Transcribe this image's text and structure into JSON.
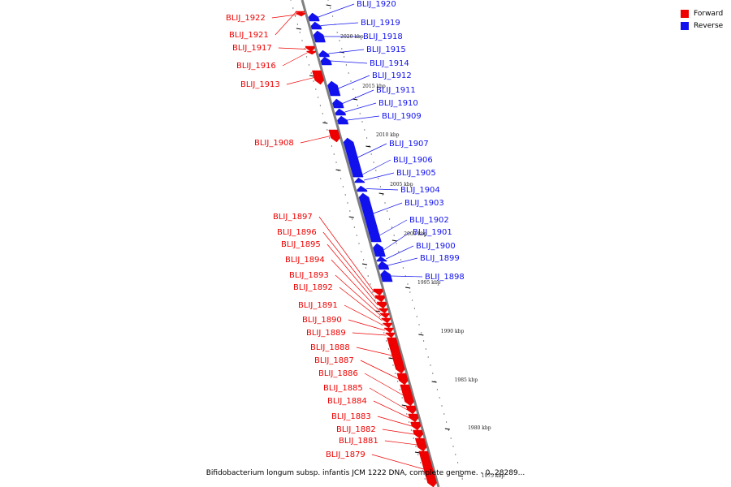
{
  "caption": "Bifidobacterium longum subsp. infantis JCM 1222 DNA, complete genome. - 0..28289...",
  "legend": [
    {
      "label": "Forward",
      "color": "#ee0000"
    },
    {
      "label": "Reverse",
      "color": "#1111ee"
    }
  ],
  "colors": {
    "forward": "#ee0000",
    "reverse": "#1111ee",
    "backbone": "#808080"
  },
  "scale_labels": [
    "2020 kbp",
    "2015 kbp",
    "2010 kbp",
    "2005 kbp",
    "2000 kbp",
    "1995 kbp",
    "1990 kbp",
    "1985 kbp",
    "1980 kbp",
    "1975 kbp"
  ],
  "genes": [
    {
      "id": "BLIJ_1922",
      "strand": "forward"
    },
    {
      "id": "BLIJ_1921",
      "strand": "forward"
    },
    {
      "id": "BLIJ_1920",
      "strand": "reverse"
    },
    {
      "id": "BLIJ_1919",
      "strand": "reverse"
    },
    {
      "id": "BLIJ_1918",
      "strand": "reverse"
    },
    {
      "id": "BLIJ_1917",
      "strand": "forward"
    },
    {
      "id": "BLIJ_1916",
      "strand": "forward"
    },
    {
      "id": "BLIJ_1915",
      "strand": "reverse"
    },
    {
      "id": "BLIJ_1914",
      "strand": "reverse"
    },
    {
      "id": "BLIJ_1913",
      "strand": "forward"
    },
    {
      "id": "BLIJ_1912",
      "strand": "reverse"
    },
    {
      "id": "BLIJ_1911",
      "strand": "reverse"
    },
    {
      "id": "BLIJ_1910",
      "strand": "reverse"
    },
    {
      "id": "BLIJ_1909",
      "strand": "reverse"
    },
    {
      "id": "BLIJ_1908",
      "strand": "forward"
    },
    {
      "id": "BLIJ_1907",
      "strand": "reverse"
    },
    {
      "id": "BLIJ_1906",
      "strand": "reverse"
    },
    {
      "id": "BLIJ_1905",
      "strand": "reverse"
    },
    {
      "id": "BLIJ_1904",
      "strand": "reverse"
    },
    {
      "id": "BLIJ_1903",
      "strand": "reverse"
    },
    {
      "id": "BLIJ_1902",
      "strand": "reverse"
    },
    {
      "id": "BLIJ_1901",
      "strand": "reverse"
    },
    {
      "id": "BLIJ_1900",
      "strand": "reverse"
    },
    {
      "id": "BLIJ_1899",
      "strand": "reverse"
    },
    {
      "id": "BLIJ_1898",
      "strand": "reverse"
    },
    {
      "id": "BLIJ_1897",
      "strand": "forward"
    },
    {
      "id": "BLIJ_1896",
      "strand": "forward"
    },
    {
      "id": "BLIJ_1895",
      "strand": "forward"
    },
    {
      "id": "BLIJ_1894",
      "strand": "forward"
    },
    {
      "id": "BLIJ_1893",
      "strand": "forward"
    },
    {
      "id": "BLIJ_1892",
      "strand": "forward"
    },
    {
      "id": "BLIJ_1891",
      "strand": "forward"
    },
    {
      "id": "BLIJ_1890",
      "strand": "forward"
    },
    {
      "id": "BLIJ_1889",
      "strand": "forward"
    },
    {
      "id": "BLIJ_1888",
      "strand": "forward"
    },
    {
      "id": "BLIJ_1887",
      "strand": "forward"
    },
    {
      "id": "BLIJ_1886",
      "strand": "forward"
    },
    {
      "id": "BLIJ_1885",
      "strand": "forward"
    },
    {
      "id": "BLIJ_1884",
      "strand": "forward"
    },
    {
      "id": "BLIJ_1883",
      "strand": "forward"
    },
    {
      "id": "BLIJ_1882",
      "strand": "forward"
    },
    {
      "id": "BLIJ_1881",
      "strand": "forward"
    },
    {
      "id": "BLIJ_1879",
      "strand": "forward"
    }
  ]
}
